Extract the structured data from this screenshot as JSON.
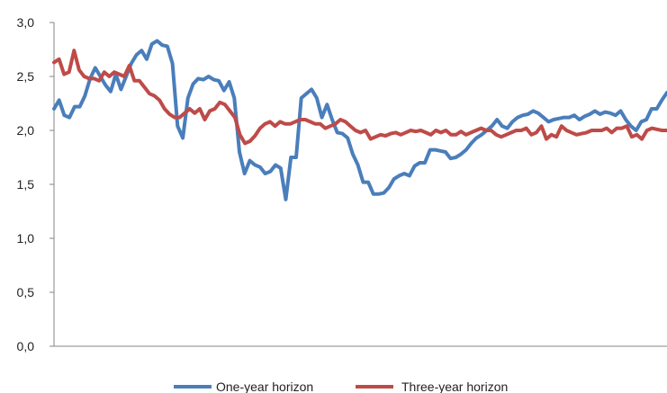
{
  "chart_data": {
    "type": "line",
    "title": "",
    "xlabel": "",
    "ylabel": "",
    "ylim": [
      0,
      3
    ],
    "yticks": [
      "0,0",
      "0,5",
      "1,0",
      "1,5",
      "2,0",
      "2,5",
      "3,0"
    ],
    "grid": false,
    "legend_position": "bottom",
    "series": [
      {
        "name": "One-year horizon",
        "color": "#4a7ebb",
        "values": [
          2.2,
          2.28,
          2.14,
          2.12,
          2.22,
          2.22,
          2.32,
          2.48,
          2.58,
          2.5,
          2.42,
          2.36,
          2.52,
          2.38,
          2.5,
          2.62,
          2.7,
          2.74,
          2.66,
          2.8,
          2.83,
          2.79,
          2.78,
          2.62,
          2.04,
          1.93,
          2.3,
          2.43,
          2.48,
          2.47,
          2.5,
          2.47,
          2.46,
          2.37,
          2.45,
          2.3,
          1.8,
          1.6,
          1.72,
          1.68,
          1.66,
          1.6,
          1.62,
          1.68,
          1.65,
          1.36,
          1.75,
          1.75,
          2.3,
          2.34,
          2.38,
          2.3,
          2.12,
          2.24,
          2.1,
          1.98,
          1.97,
          1.93,
          1.78,
          1.68,
          1.52,
          1.52,
          1.41,
          1.41,
          1.42,
          1.47,
          1.55,
          1.58,
          1.6,
          1.58,
          1.67,
          1.7,
          1.7,
          1.82,
          1.82,
          1.81,
          1.8,
          1.74,
          1.75,
          1.78,
          1.82,
          1.88,
          1.93,
          1.96,
          2.0,
          2.04,
          2.1,
          2.04,
          2.02,
          2.08,
          2.12,
          2.14,
          2.15,
          2.18,
          2.16,
          2.12,
          2.08,
          2.1,
          2.11,
          2.12,
          2.12,
          2.14,
          2.1,
          2.13,
          2.15,
          2.18,
          2.15,
          2.17,
          2.16,
          2.14,
          2.18,
          2.1,
          2.04,
          2.0,
          2.08,
          2.1,
          2.2,
          2.2,
          2.28,
          2.35
        ]
      },
      {
        "name": "Three-year horizon",
        "color": "#be4b48",
        "values": [
          2.63,
          2.66,
          2.52,
          2.54,
          2.74,
          2.56,
          2.5,
          2.48,
          2.48,
          2.46,
          2.54,
          2.5,
          2.54,
          2.52,
          2.5,
          2.6,
          2.46,
          2.46,
          2.4,
          2.34,
          2.32,
          2.28,
          2.2,
          2.15,
          2.12,
          2.12,
          2.16,
          2.2,
          2.16,
          2.2,
          2.1,
          2.18,
          2.2,
          2.26,
          2.24,
          2.18,
          2.12,
          1.96,
          1.88,
          1.9,
          1.95,
          2.02,
          2.06,
          2.08,
          2.04,
          2.08,
          2.06,
          2.06,
          2.08,
          2.1,
          2.1,
          2.08,
          2.06,
          2.06,
          2.02,
          2.04,
          2.06,
          2.1,
          2.08,
          2.04,
          2.0,
          1.98,
          2.0,
          1.92,
          1.94,
          1.96,
          1.95,
          1.97,
          1.98,
          1.96,
          1.98,
          2.0,
          1.99,
          2.0,
          1.98,
          1.96,
          2.0,
          1.98,
          2.0,
          1.96,
          1.96,
          1.99,
          1.96,
          1.98,
          2.0,
          2.02,
          2.0,
          2.0,
          1.96,
          1.94,
          1.96,
          1.98,
          2.0,
          2.0,
          2.02,
          1.96,
          1.98,
          2.04,
          1.92,
          1.96,
          1.94,
          2.04,
          2.0,
          1.98,
          1.96,
          1.97,
          1.98,
          2.0,
          2.0,
          2.0,
          2.02,
          1.98,
          2.02,
          2.02,
          2.04,
          1.94,
          1.96,
          1.92,
          2.0,
          2.02,
          2.01,
          2.0,
          2.0
        ]
      }
    ]
  }
}
